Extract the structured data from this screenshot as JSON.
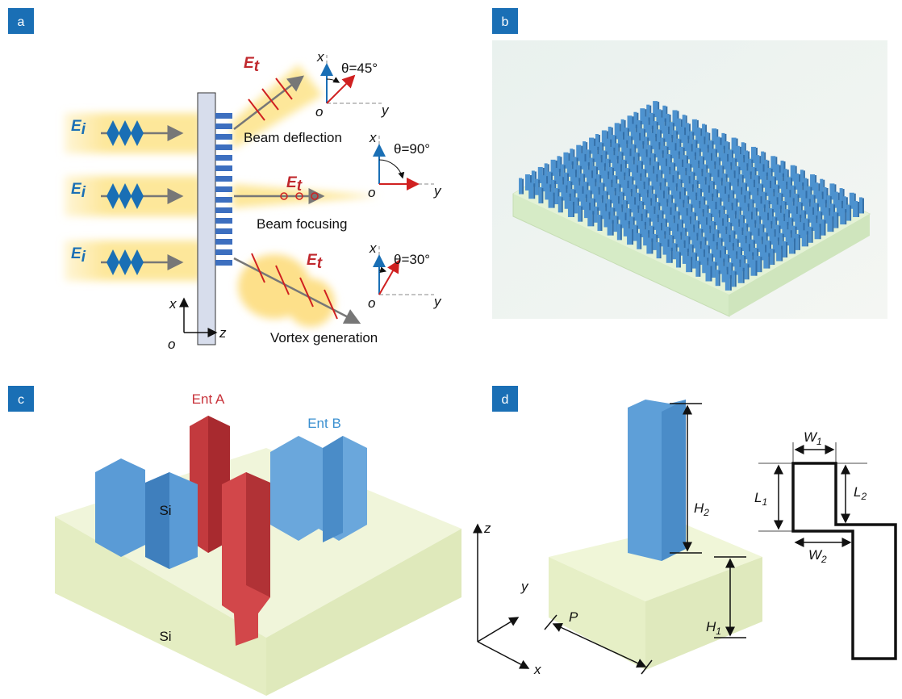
{
  "panel_labels": [
    "a",
    "b",
    "c",
    "d"
  ],
  "panel_a": {
    "incident_field": [
      {
        "base": "E",
        "sub": "i"
      },
      {
        "base": "E",
        "sub": "i"
      },
      {
        "base": "E",
        "sub": "i"
      }
    ],
    "transmitted_field": [
      {
        "base": "E",
        "sub": "t"
      },
      {
        "base": "E",
        "sub": "t"
      },
      {
        "base": "E",
        "sub": "t"
      }
    ],
    "functions": [
      "Beam deflection",
      "Beam focusing",
      "Vortex generation"
    ],
    "polarization_frames": [
      {
        "x": "x",
        "y": "y",
        "o": "o",
        "angle": "θ=45°"
      },
      {
        "x": "x",
        "y": "y",
        "o": "o",
        "angle": "θ=90°"
      },
      {
        "x": "x",
        "y": "y",
        "o": "o",
        "angle": "θ=30°"
      }
    ],
    "frame": {
      "x": "x",
      "z": "z",
      "o": "o"
    }
  },
  "panel_c": {
    "entity_a": "Ent A",
    "entity_b": "Ent B",
    "pillar_material": "Si",
    "substrate_material": "Si"
  },
  "panel_d": {
    "H2": {
      "base": "H",
      "sub": "2"
    },
    "H1": {
      "base": "H",
      "sub": "1"
    },
    "L1": {
      "base": "L",
      "sub": "1"
    },
    "L2": {
      "base": "L",
      "sub": "2"
    },
    "W1": {
      "base": "W",
      "sub": "1"
    },
    "W2": {
      "base": "W",
      "sub": "2"
    },
    "P": "P",
    "axes": {
      "x": "x",
      "y": "y",
      "z": "z"
    }
  }
}
